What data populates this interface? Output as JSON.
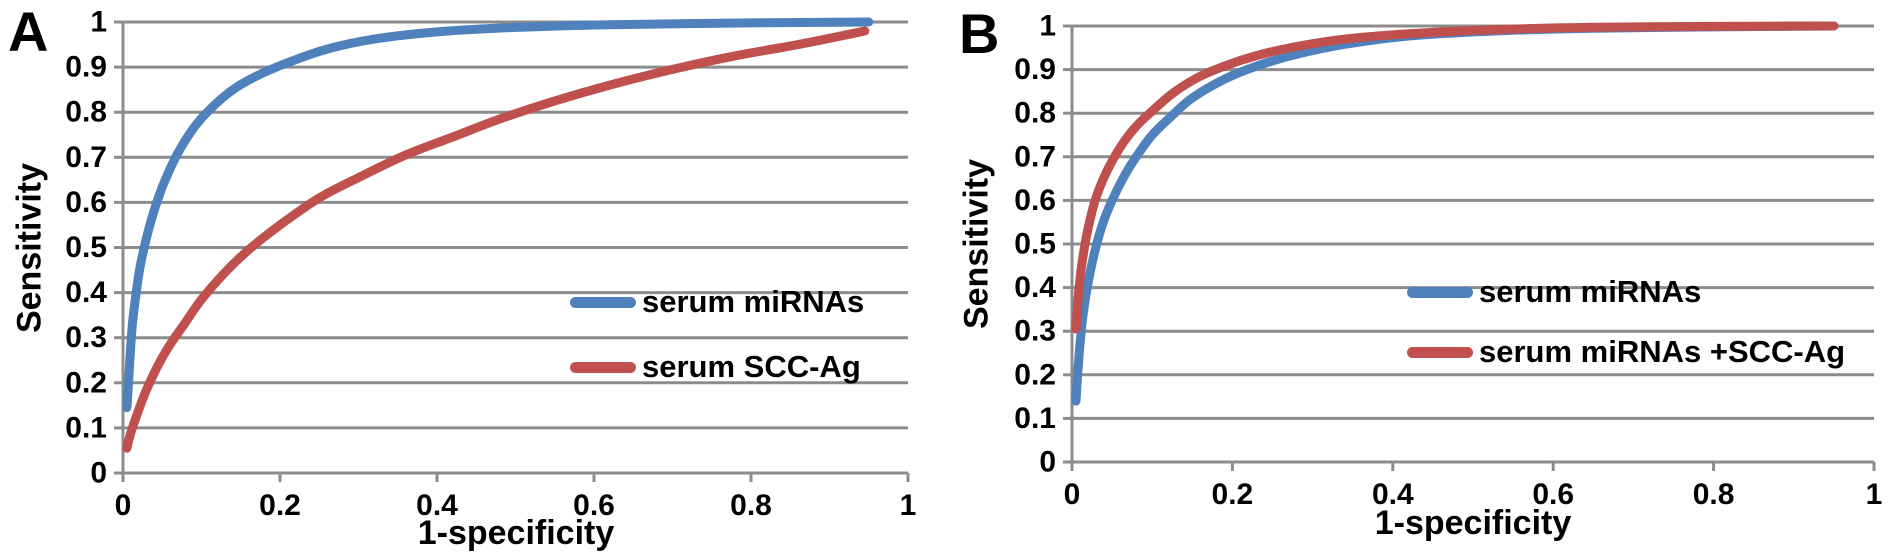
{
  "styles": {
    "background": "#FFFFFF",
    "grid_color": "#8C8C8C",
    "text_color": "#000000",
    "blue": "#4F81BD",
    "red": "#C0504D"
  },
  "chart_data": [
    {
      "type": "line",
      "panel_label": "A",
      "title": "",
      "xlabel": "1-specificity",
      "ylabel": "Sensitivity",
      "xlim": [
        0,
        1
      ],
      "ylim": [
        0,
        1
      ],
      "x_ticks": [
        "0",
        "0.2",
        "0.4",
        "0.6",
        "0.8",
        "1"
      ],
      "y_ticks": [
        "0",
        "0.1",
        "0.2",
        "0.3",
        "0.4",
        "0.5",
        "0.6",
        "0.7",
        "0.8",
        "0.9",
        "1"
      ],
      "grid": "horizontal",
      "legend_position": "inside-lower-right",
      "series": [
        {
          "name": "serum miRNAs",
          "color": "#4F81BD",
          "points": [
            [
              0.005,
              0.145
            ],
            [
              0.007,
              0.2
            ],
            [
              0.009,
              0.26
            ],
            [
              0.012,
              0.33
            ],
            [
              0.016,
              0.39
            ],
            [
              0.021,
              0.45
            ],
            [
              0.027,
              0.5
            ],
            [
              0.035,
              0.555
            ],
            [
              0.045,
              0.61
            ],
            [
              0.055,
              0.655
            ],
            [
              0.07,
              0.71
            ],
            [
              0.09,
              0.765
            ],
            [
              0.11,
              0.805
            ],
            [
              0.14,
              0.85
            ],
            [
              0.17,
              0.88
            ],
            [
              0.21,
              0.91
            ],
            [
              0.26,
              0.94
            ],
            [
              0.32,
              0.962
            ],
            [
              0.4,
              0.978
            ],
            [
              0.5,
              0.988
            ],
            [
              0.62,
              0.994
            ],
            [
              0.8,
              0.998
            ],
            [
              0.95,
              1.0
            ]
          ]
        },
        {
          "name": "serum SCC-Ag",
          "color": "#C0504D",
          "points": [
            [
              0.005,
              0.055
            ],
            [
              0.01,
              0.09
            ],
            [
              0.02,
              0.14
            ],
            [
              0.03,
              0.185
            ],
            [
              0.045,
              0.24
            ],
            [
              0.06,
              0.285
            ],
            [
              0.08,
              0.335
            ],
            [
              0.1,
              0.385
            ],
            [
              0.13,
              0.445
            ],
            [
              0.16,
              0.495
            ],
            [
              0.2,
              0.55
            ],
            [
              0.25,
              0.61
            ],
            [
              0.3,
              0.655
            ],
            [
              0.36,
              0.705
            ],
            [
              0.42,
              0.745
            ],
            [
              0.48,
              0.785
            ],
            [
              0.55,
              0.825
            ],
            [
              0.62,
              0.86
            ],
            [
              0.7,
              0.895
            ],
            [
              0.78,
              0.925
            ],
            [
              0.86,
              0.95
            ],
            [
              0.945,
              0.98
            ]
          ]
        }
      ]
    },
    {
      "type": "line",
      "panel_label": "B",
      "title": "",
      "xlabel": "1-specificity",
      "ylabel": "Sensitivity",
      "xlim": [
        0,
        1
      ],
      "ylim": [
        0,
        1
      ],
      "x_ticks": [
        "0",
        "0.2",
        "0.4",
        "0.6",
        "0.8",
        "1"
      ],
      "y_ticks": [
        "0",
        "0.1",
        "0.2",
        "0.3",
        "0.4",
        "0.5",
        "0.6",
        "0.7",
        "0.8",
        "0.9",
        "1"
      ],
      "grid": "horizontal",
      "legend_position": "inside-middle-right",
      "series": [
        {
          "name": "serum miRNAs",
          "color": "#4F81BD",
          "points": [
            [
              0.005,
              0.14
            ],
            [
              0.007,
              0.2
            ],
            [
              0.01,
              0.27
            ],
            [
              0.014,
              0.34
            ],
            [
              0.02,
              0.41
            ],
            [
              0.028,
              0.48
            ],
            [
              0.038,
              0.545
            ],
            [
              0.05,
              0.6
            ],
            [
              0.065,
              0.655
            ],
            [
              0.08,
              0.7
            ],
            [
              0.1,
              0.75
            ],
            [
              0.125,
              0.795
            ],
            [
              0.15,
              0.835
            ],
            [
              0.19,
              0.878
            ],
            [
              0.23,
              0.908
            ],
            [
              0.28,
              0.935
            ],
            [
              0.34,
              0.958
            ],
            [
              0.42,
              0.977
            ],
            [
              0.52,
              0.988
            ],
            [
              0.65,
              0.995
            ],
            [
              0.8,
              0.998
            ],
            [
              0.95,
              1.0
            ]
          ]
        },
        {
          "name": "serum miRNAs +SCC-Ag",
          "color": "#C0504D",
          "points": [
            [
              0.005,
              0.305
            ],
            [
              0.007,
              0.36
            ],
            [
              0.01,
              0.42
            ],
            [
              0.014,
              0.475
            ],
            [
              0.02,
              0.535
            ],
            [
              0.028,
              0.595
            ],
            [
              0.038,
              0.645
            ],
            [
              0.05,
              0.69
            ],
            [
              0.065,
              0.735
            ],
            [
              0.08,
              0.77
            ],
            [
              0.1,
              0.805
            ],
            [
              0.125,
              0.845
            ],
            [
              0.155,
              0.88
            ],
            [
              0.19,
              0.908
            ],
            [
              0.23,
              0.932
            ],
            [
              0.28,
              0.953
            ],
            [
              0.34,
              0.97
            ],
            [
              0.42,
              0.982
            ],
            [
              0.52,
              0.991
            ],
            [
              0.65,
              0.997
            ],
            [
              0.8,
              0.999
            ],
            [
              0.95,
              1.0
            ]
          ]
        }
      ]
    }
  ]
}
